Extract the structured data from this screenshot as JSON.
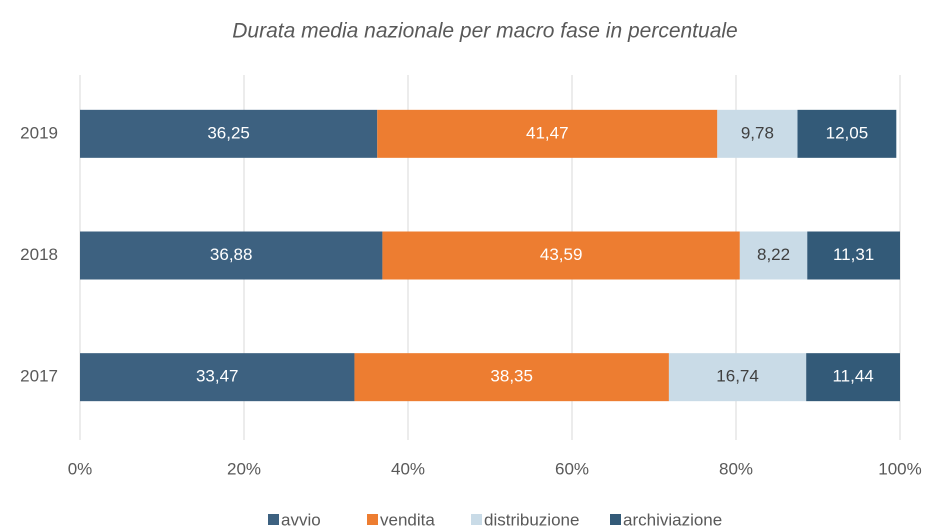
{
  "chart_data": {
    "type": "stacked-bar-horizontal",
    "title": "Durata media nazionale per macro fase in percentuale",
    "categories": [
      "2019",
      "2018",
      "2017"
    ],
    "series": [
      {
        "name": "avvio",
        "color": "#3d6180",
        "values": [
          36.25,
          36.88,
          33.47
        ],
        "value_labels": [
          "36,25",
          "36,88",
          "33,47"
        ]
      },
      {
        "name": "vendita",
        "color": "#ed7d31",
        "values": [
          41.47,
          43.59,
          38.35
        ],
        "value_labels": [
          "41,47",
          "43,59",
          "38,35"
        ]
      },
      {
        "name": "distribuzione",
        "color": "#c9dbe7",
        "values": [
          9.78,
          8.22,
          16.74
        ],
        "value_labels": [
          "9,78",
          "8,22",
          "16,74"
        ]
      },
      {
        "name": "archiviazione",
        "color": "#335a78",
        "values": [
          12.05,
          11.31,
          11.44
        ],
        "value_labels": [
          "12,05",
          "11,31",
          "11,44"
        ]
      }
    ],
    "xlim": [
      0,
      100
    ],
    "xticks": [
      {
        "value": 0,
        "label": "0%"
      },
      {
        "value": 20,
        "label": "20%"
      },
      {
        "value": 40,
        "label": "40%"
      },
      {
        "value": 60,
        "label": "60%"
      },
      {
        "value": 80,
        "label": "80%"
      },
      {
        "value": 100,
        "label": "100%"
      }
    ],
    "grid": true,
    "legend": "bottom"
  }
}
